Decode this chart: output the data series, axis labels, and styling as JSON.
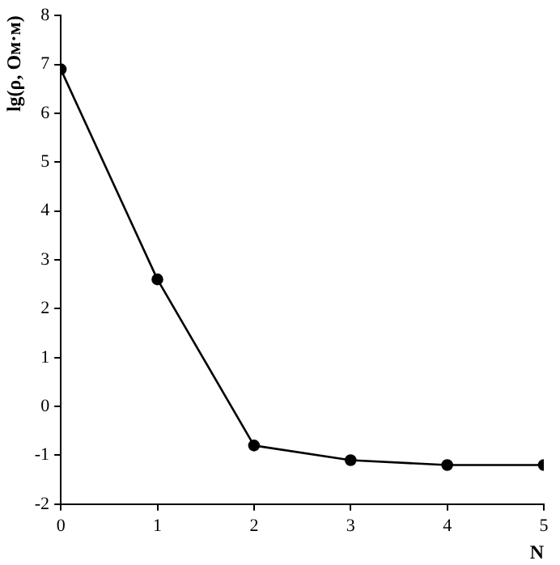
{
  "chart_data": {
    "type": "line",
    "xlabel": "N",
    "ylabel": "lg(ρ, Ом·м)",
    "x": [
      0,
      1,
      2,
      3,
      4,
      5
    ],
    "series": [
      {
        "color": "#000000",
        "values": [
          6.9,
          2.6,
          -0.8,
          -1.1,
          -1.2,
          -1.2
        ]
      }
    ],
    "xlim": [
      0,
      5
    ],
    "xticks": [
      0,
      1,
      2,
      3,
      4,
      5
    ],
    "ylim": [
      -2,
      8
    ],
    "yticks": [
      -2,
      -1,
      0,
      1,
      2,
      3,
      4,
      5,
      6,
      7,
      8
    ],
    "grid": false,
    "legend": false,
    "marker": "circle",
    "line_style": "solid"
  }
}
